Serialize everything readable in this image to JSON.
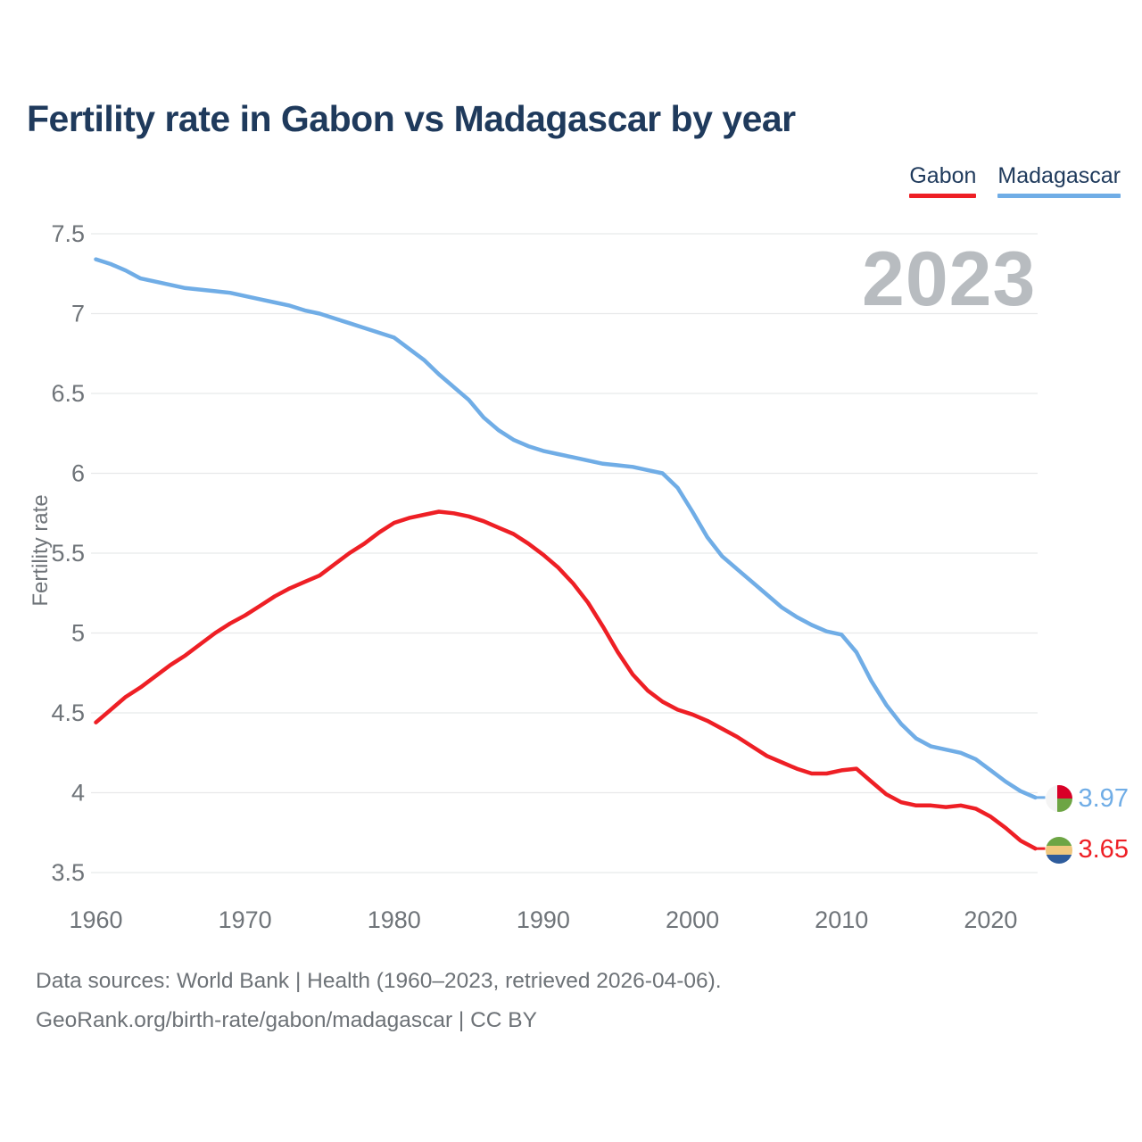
{
  "header": {
    "title": "Fertility rate in Gabon vs Madagascar by year"
  },
  "chart_data": {
    "type": "line",
    "title": "Fertility rate in Gabon vs Madagascar by year",
    "xlabel": "",
    "ylabel": "Fertility rate",
    "watermark": "2023",
    "grid": "horizontal",
    "legend_position": "top-right",
    "xlim": [
      1960,
      2023
    ],
    "ylim": [
      3.5,
      7.5
    ],
    "x_ticks": [
      1960,
      1970,
      1980,
      1990,
      2000,
      2010,
      2020
    ],
    "y_ticks": [
      3.5,
      4,
      4.5,
      5,
      5.5,
      6,
      6.5,
      7,
      7.5
    ],
    "x": [
      1960,
      1961,
      1962,
      1963,
      1964,
      1965,
      1966,
      1967,
      1968,
      1969,
      1970,
      1971,
      1972,
      1973,
      1974,
      1975,
      1976,
      1977,
      1978,
      1979,
      1980,
      1981,
      1982,
      1983,
      1984,
      1985,
      1986,
      1987,
      1988,
      1989,
      1990,
      1991,
      1992,
      1993,
      1994,
      1995,
      1996,
      1997,
      1998,
      1999,
      2000,
      2001,
      2002,
      2003,
      2004,
      2005,
      2006,
      2007,
      2008,
      2009,
      2010,
      2011,
      2012,
      2013,
      2014,
      2015,
      2016,
      2017,
      2018,
      2019,
      2020,
      2021,
      2022,
      2023
    ],
    "series": [
      {
        "name": "Gabon",
        "color": "#ee1f25",
        "end_label": "3.65",
        "values": [
          4.44,
          4.52,
          4.6,
          4.66,
          4.73,
          4.8,
          4.86,
          4.93,
          5.0,
          5.06,
          5.11,
          5.17,
          5.23,
          5.28,
          5.32,
          5.36,
          5.43,
          5.5,
          5.56,
          5.63,
          5.69,
          5.72,
          5.74,
          5.76,
          5.75,
          5.73,
          5.7,
          5.66,
          5.62,
          5.56,
          5.49,
          5.41,
          5.31,
          5.19,
          5.04,
          4.88,
          4.74,
          4.64,
          4.57,
          4.52,
          4.49,
          4.45,
          4.4,
          4.35,
          4.29,
          4.23,
          4.19,
          4.15,
          4.12,
          4.12,
          4.14,
          4.15,
          4.07,
          3.99,
          3.94,
          3.92,
          3.92,
          3.91,
          3.92,
          3.9,
          3.85,
          3.78,
          3.7,
          3.65
        ]
      },
      {
        "name": "Madagascar",
        "color": "#70ade6",
        "end_label": "3.97",
        "values": [
          7.34,
          7.31,
          7.27,
          7.22,
          7.2,
          7.18,
          7.16,
          7.15,
          7.14,
          7.13,
          7.11,
          7.09,
          7.07,
          7.05,
          7.02,
          7.0,
          6.97,
          6.94,
          6.91,
          6.88,
          6.85,
          6.78,
          6.71,
          6.62,
          6.54,
          6.46,
          6.35,
          6.27,
          6.21,
          6.17,
          6.14,
          6.12,
          6.1,
          6.08,
          6.06,
          6.05,
          6.04,
          6.02,
          6.0,
          5.91,
          5.76,
          5.6,
          5.48,
          5.4,
          5.32,
          5.24,
          5.16,
          5.1,
          5.05,
          5.01,
          4.99,
          4.88,
          4.7,
          4.55,
          4.43,
          4.34,
          4.29,
          4.27,
          4.25,
          4.21,
          4.14,
          4.07,
          4.01,
          3.97
        ]
      }
    ]
  },
  "footer": {
    "line1": "Data sources: World Bank | Health (1960–2023, retrieved 2026-04-06).",
    "line2": "GeoRank.org/birth-rate/gabon/madagascar | CC BY"
  },
  "icons": {
    "gabon_flag": [
      "#6da544",
      "#f0c87e",
      "#2e5c9c"
    ],
    "madagascar_flag": [
      "#f4f4f4",
      "#d80027",
      "#6da544"
    ]
  },
  "colors": {
    "title": "#1f3a5c",
    "axis_text": "#6f7479",
    "watermark": "#b8bcc0",
    "footer": "#6d7277",
    "gridline": "#e8e9ea"
  }
}
